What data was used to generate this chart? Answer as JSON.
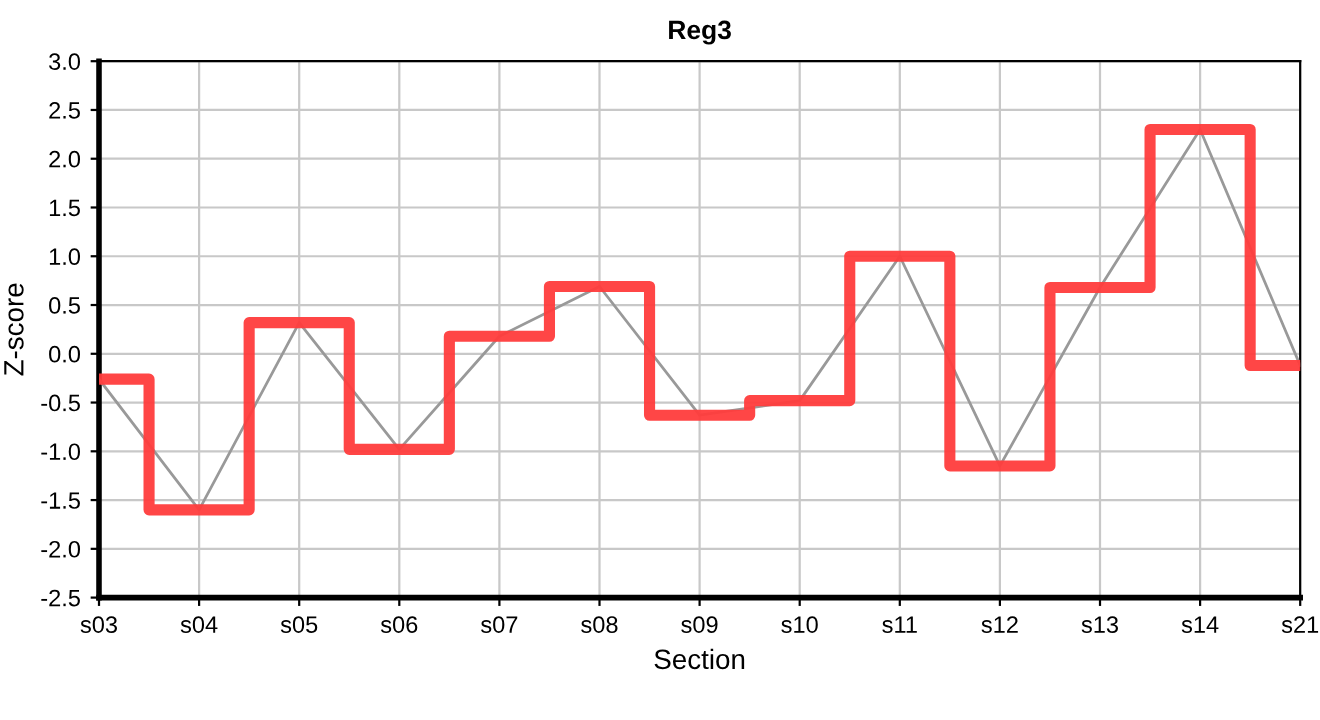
{
  "chart_data": {
    "type": "line",
    "title": "Reg3",
    "xlabel": "Section",
    "ylabel": "Z-score",
    "categories": [
      "s03",
      "s04",
      "s05",
      "s06",
      "s07",
      "s08",
      "s09",
      "s10",
      "s11",
      "s12",
      "s13",
      "s14",
      "s21"
    ],
    "series": [
      {
        "color": "#999999",
        "values": [
          -0.26,
          -1.6,
          0.32,
          -0.98,
          0.18,
          0.69,
          -0.63,
          -0.48,
          1.0,
          -1.15,
          0.68,
          2.3,
          -0.12
        ]
      },
      {
        "type": "step",
        "color": "#ff3c3c",
        "values": [
          -0.26,
          -1.6,
          0.32,
          -0.98,
          0.18,
          0.69,
          -0.63,
          -0.48,
          1.0,
          -1.15,
          0.68,
          2.3,
          -0.12
        ]
      }
    ],
    "ylim": [
      -2.5,
      3.0
    ],
    "yticks": [
      -2.5,
      {
        "value": -2,
        "label": "-2.0"
      },
      -1.5,
      {
        "value": -1,
        "label": "-1.0"
      },
      -0.5,
      {
        "value": 0,
        "label": "0.0"
      },
      0.5,
      {
        "value": 1,
        "label": "1.0"
      },
      1.5,
      {
        "value": 2,
        "label": "2.0"
      },
      2.5,
      {
        "value": 3,
        "label": "3.0"
      }
    ],
    "grid": true,
    "legend": false
  }
}
